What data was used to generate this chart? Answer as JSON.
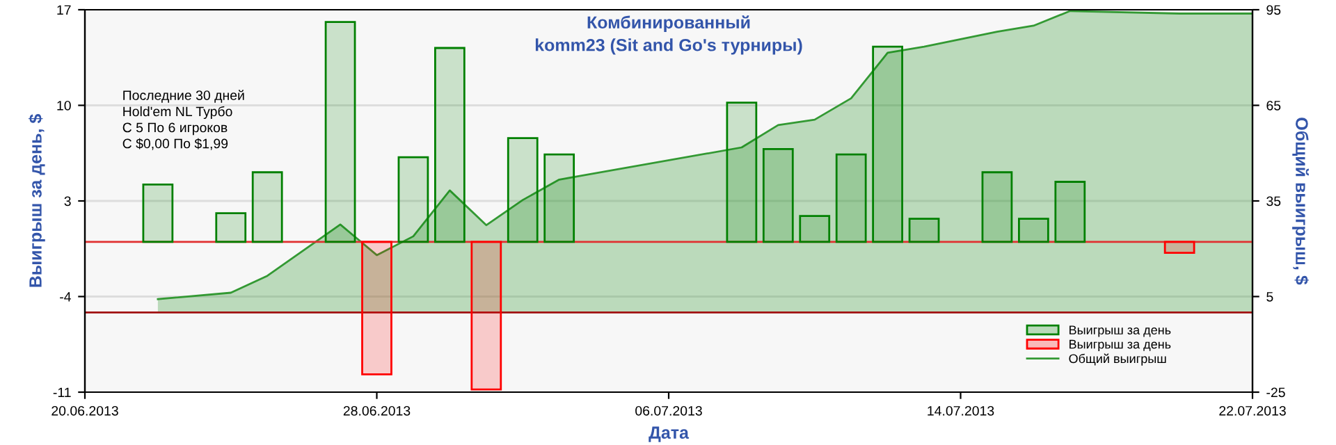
{
  "chart_data": {
    "type": "bar",
    "title": "Комбинированный",
    "subtitle": "komm23 (Sit and Go's турниры)",
    "xlabel": "Дата",
    "ylabel": "Выигрыш за день, $",
    "y2label": "Общий выигрыш, $",
    "annotations": [
      "Последние 30 дней\nHold'em NL Турбо\nС 5 По 6 игроков\nС $0,00 По $1,99"
    ],
    "x": [
      "2013-06-22",
      "2013-06-24",
      "2013-06-25",
      "2013-06-27",
      "2013-06-28",
      "2013-06-29",
      "2013-06-30",
      "2013-07-01",
      "2013-07-02",
      "2013-07-03",
      "2013-07-08",
      "2013-07-09",
      "2013-07-10",
      "2013-07-11",
      "2013-07-12",
      "2013-07-13",
      "2013-07-15",
      "2013-07-16",
      "2013-07-17",
      "2013-07-20"
    ],
    "series": [
      {
        "name": "Выигрыш за день",
        "color": "#008000",
        "values": [
          4.2,
          2.1,
          5.1,
          16.1,
          null,
          6.2,
          14.2,
          null,
          7.6,
          6.4,
          10.2,
          6.8,
          1.9,
          6.4,
          14.3,
          1.7,
          5.1,
          1.7,
          4.4,
          null
        ]
      },
      {
        "name": "Выигрыш за день",
        "color": "#ff0000",
        "values": [
          null,
          null,
          null,
          null,
          -9.7,
          null,
          null,
          -10.8,
          null,
          null,
          null,
          null,
          null,
          null,
          null,
          null,
          null,
          null,
          null,
          -0.8
        ]
      },
      {
        "name": "Общий выигрыш",
        "type": "area",
        "axis": "y2",
        "color": "#339933",
        "x": [
          "2013-06-22",
          "2013-06-24",
          "2013-06-25",
          "2013-06-27",
          "2013-06-28",
          "2013-06-29",
          "2013-06-30",
          "2013-07-01",
          "2013-07-02",
          "2013-07-03",
          "2013-07-08",
          "2013-07-09",
          "2013-07-10",
          "2013-07-11",
          "2013-07-12",
          "2013-07-13",
          "2013-07-15",
          "2013-07-16",
          "2013-07-17",
          "2013-07-20",
          "2013-07-22"
        ],
        "values": [
          4.2,
          6.2,
          11.5,
          27.6,
          18.0,
          23.9,
          38.3,
          27.4,
          35.3,
          41.7,
          51.8,
          58.8,
          60.5,
          67.2,
          81.5,
          83.4,
          88.1,
          90.0,
          94.6,
          93.8,
          93.8
        ]
      }
    ],
    "xlim": [
      "2013-06-20",
      "2013-07-22"
    ],
    "xticks": [
      {
        "value": "2013-06-20",
        "label": "20.06.2013"
      },
      {
        "value": "2013-06-28",
        "label": "28.06.2013"
      },
      {
        "value": "2013-07-06",
        "label": "06.07.2013"
      },
      {
        "value": "2013-07-14",
        "label": "14.07.2013"
      },
      {
        "value": "2013-07-22",
        "label": "22.07.2013"
      }
    ],
    "ylim": [
      -11,
      17
    ],
    "yticks": [
      -11,
      -4,
      3,
      10,
      17
    ],
    "y2lim": [
      -25,
      95
    ],
    "y2ticks": [
      -25,
      5,
      35,
      65,
      95
    ],
    "ref_lines": [
      {
        "axis": "y",
        "value": 0,
        "color": "#e03030"
      },
      {
        "axis": "y2",
        "value": 0,
        "color": "#a01010"
      }
    ],
    "grid": true,
    "legend": "bottom right"
  }
}
